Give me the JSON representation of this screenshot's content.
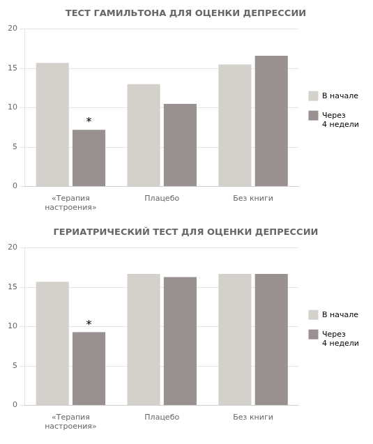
{
  "chart_data": [
    {
      "type": "bar",
      "title": "ТЕСТ ГАМИЛЬТОНА ДЛЯ ОЦЕНКИ ДЕПРЕССИИ",
      "categories": [
        "«Терапия\nнастроения»",
        "Плацебо",
        "Без книги"
      ],
      "series": [
        {
          "name": "В начале",
          "color": "#d4d0cc",
          "values": [
            15.7,
            13.0,
            15.5
          ]
        },
        {
          "name": "Через\n4 недели",
          "color": "#999090",
          "values": [
            7.2,
            10.5,
            16.6
          ]
        }
      ],
      "annotations": [
        {
          "text": "*",
          "category": "«Терапия\nнастроения»",
          "series": "Через\n4 недели"
        }
      ],
      "ylim": [
        0,
        20
      ],
      "yticks": [
        0,
        5,
        10,
        15,
        20
      ],
      "grid": true,
      "legend": "right"
    },
    {
      "type": "bar",
      "title": "ГЕРИАТРИЧЕСКИЙ ТЕСТ ДЛЯ ОЦЕНКИ ДЕПРЕССИИ",
      "categories": [
        "«Терапия\nнастроения»",
        "Плацебо",
        "Без книги"
      ],
      "series": [
        {
          "name": "В начале",
          "color": "#d4d0cc",
          "values": [
            15.7,
            16.7,
            16.7
          ]
        },
        {
          "name": "Через\n4 недели",
          "color": "#999090",
          "values": [
            9.3,
            16.3,
            16.7
          ]
        }
      ],
      "annotations": [
        {
          "text": "*",
          "category": "«Терапия\nнастроения»",
          "series": "Через\n4 недели"
        }
      ],
      "ylim": [
        0,
        20
      ],
      "yticks": [
        0,
        5,
        10,
        15,
        20
      ],
      "grid": true,
      "legend": "right"
    }
  ]
}
